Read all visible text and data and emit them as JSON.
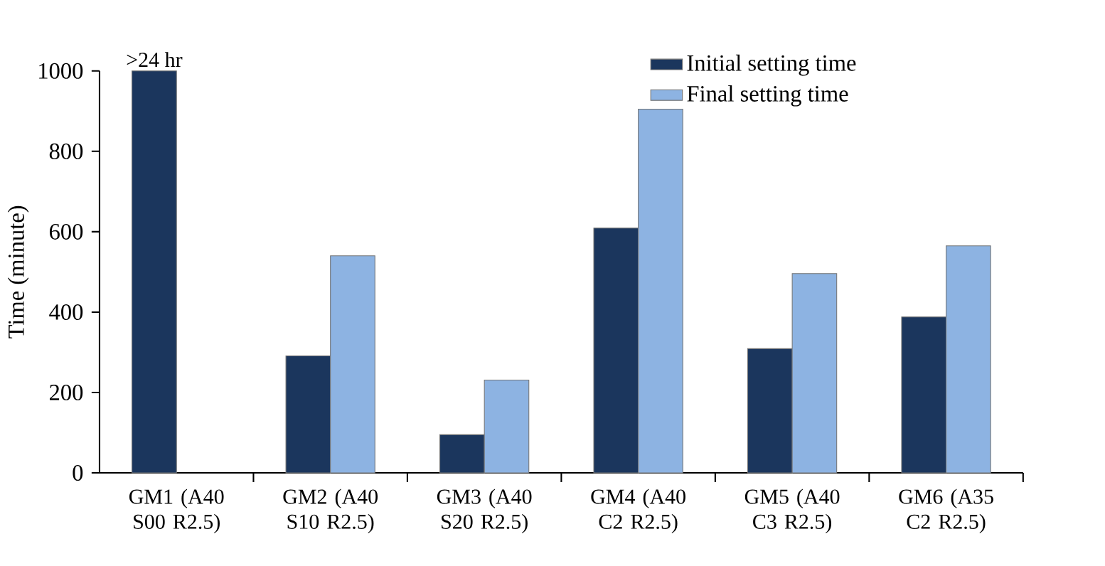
{
  "chart_data": {
    "type": "bar",
    "ylabel": "Time (minute)",
    "categories": [
      "GM1 (A40 S00 R2.5)",
      "GM2 (A40 S10 R2.5)",
      "GM3 (A40 S20 R2.5)",
      "GM4 (A40 C2 R2.5)",
      "GM5 (A40 C3 R2.5)",
      "GM6 (A35 C2 R2.5)"
    ],
    "series": [
      {
        "name": "Initial setting time",
        "color": "#1b365d",
        "values": [
          1000,
          291,
          95,
          609,
          309,
          388
        ]
      },
      {
        "name": "Final setting time",
        "color": "#8db3e2",
        "values": [
          null,
          540,
          231,
          905,
          496,
          565
        ]
      }
    ],
    "ylim": [
      0,
      1000
    ],
    "yticks": [
      0,
      200,
      400,
      600,
      800,
      1000
    ],
    "annotations": [
      {
        "text": ">24 hr",
        "x": "GM1 (A40 S00 R2.5)",
        "y": 1000
      }
    ],
    "legend": "top right",
    "grid": false
  }
}
